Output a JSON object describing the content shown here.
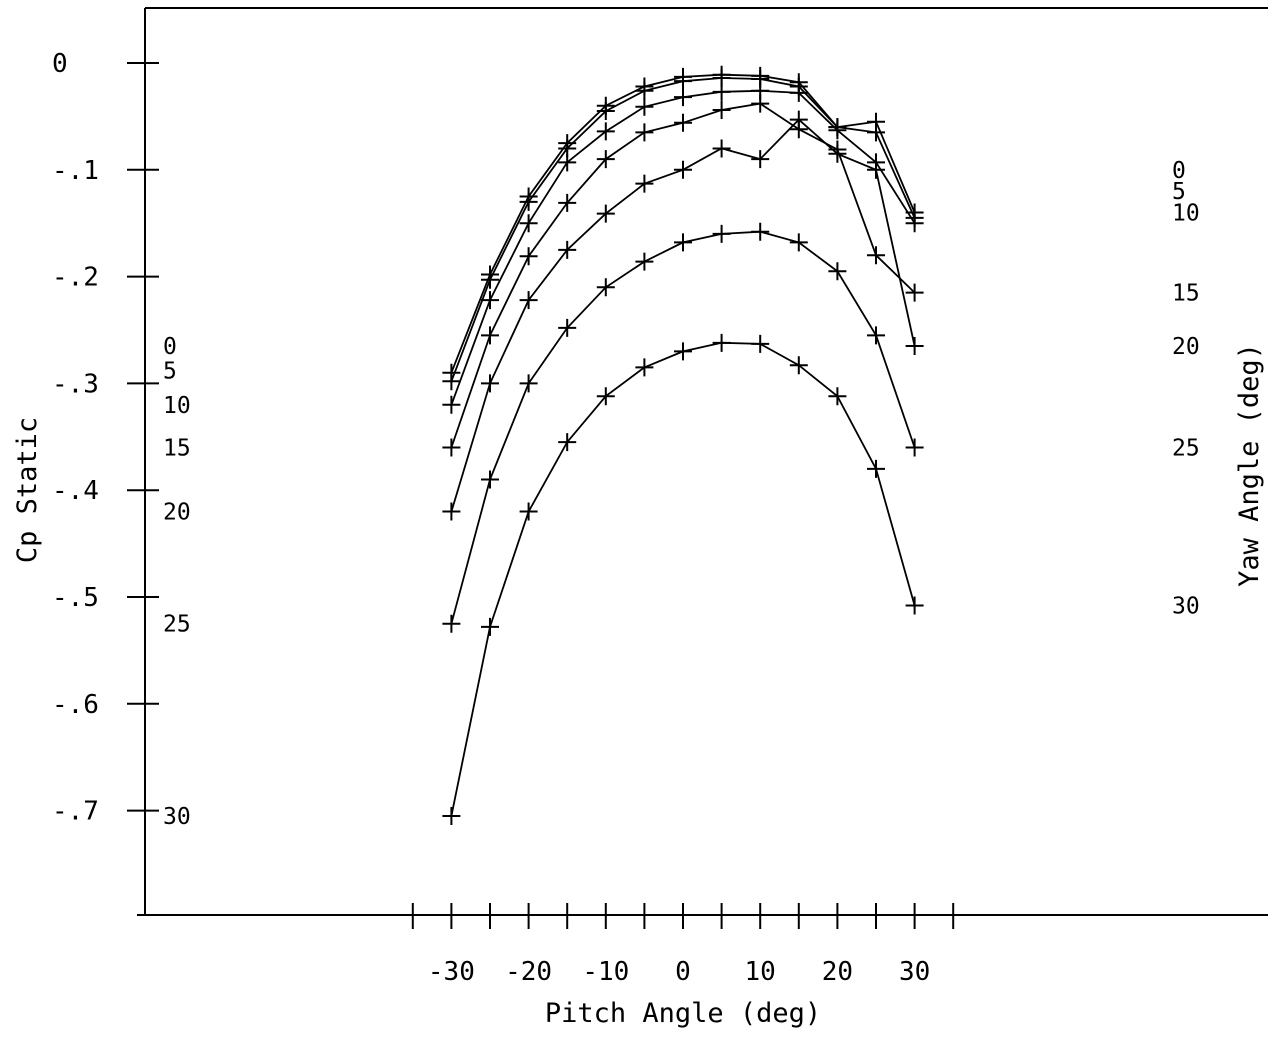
{
  "chart_data": {
    "type": "line",
    "title": "",
    "xlabel": "Pitch Angle (deg)",
    "ylabel": "Cp Static",
    "right_label": "Yaw Angle (deg)",
    "xlim": [
      -35,
      35
    ],
    "ylim": [
      -0.8,
      0.05
    ],
    "x_ticks": [
      -30,
      -20,
      -10,
      0,
      10,
      20,
      30
    ],
    "x_tick_labels": [
      "-30",
      "-20",
      "-10",
      "0",
      "10",
      "20",
      "30"
    ],
    "y_ticks": [
      0,
      -0.1,
      -0.2,
      -0.3,
      -0.4,
      -0.5,
      -0.6,
      -0.7
    ],
    "y_tick_labels": [
      "0",
      "-.1",
      "-.2",
      "-.3",
      "-.4",
      "-.5",
      "-.6",
      "-.7"
    ],
    "grid": false,
    "legend": "inline labels at left and right ends of each curve",
    "x": [
      -30,
      -25,
      -20,
      -15,
      -10,
      -5,
      0,
      5,
      10,
      15,
      20,
      25,
      30
    ],
    "series": [
      {
        "name": "0",
        "values": [
          -0.29,
          -0.198,
          -0.125,
          -0.075,
          -0.04,
          -0.022,
          -0.013,
          -0.011,
          -0.012,
          -0.018,
          -0.06,
          -0.055,
          -0.14
        ]
      },
      {
        "name": "5",
        "values": [
          -0.298,
          -0.203,
          -0.13,
          -0.08,
          -0.045,
          -0.026,
          -0.017,
          -0.014,
          -0.015,
          -0.022,
          -0.06,
          -0.065,
          -0.145
        ]
      },
      {
        "name": "10",
        "values": [
          -0.32,
          -0.222,
          -0.15,
          -0.093,
          -0.064,
          -0.041,
          -0.032,
          -0.027,
          -0.026,
          -0.028,
          -0.063,
          -0.093,
          -0.15
        ]
      },
      {
        "name": "15",
        "values": [
          -0.36,
          -0.255,
          -0.181,
          -0.131,
          -0.09,
          -0.065,
          -0.056,
          -0.044,
          -0.038,
          -0.062,
          -0.081,
          -0.18,
          -0.215
        ]
      },
      {
        "name": "20",
        "values": [
          -0.42,
          -0.3,
          -0.222,
          -0.175,
          -0.141,
          -0.113,
          -0.1,
          -0.08,
          -0.09,
          -0.053,
          -0.085,
          -0.1,
          -0.265
        ]
      },
      {
        "name": "25",
        "values": [
          -0.525,
          -0.39,
          -0.3,
          -0.248,
          -0.21,
          -0.186,
          -0.168,
          -0.16,
          -0.158,
          -0.168,
          -0.195,
          -0.255,
          -0.36
        ]
      },
      {
        "name": "30",
        "values": [
          -0.705,
          -0.528,
          -0.42,
          -0.355,
          -0.312,
          -0.285,
          -0.27,
          -0.262,
          -0.263,
          -0.283,
          -0.312,
          -0.38,
          -0.508
        ]
      }
    ],
    "left_labels": [
      {
        "text": "0",
        "y": -0.265
      },
      {
        "text": "5",
        "y": -0.288
      },
      {
        "text": "10",
        "y": -0.32
      },
      {
        "text": "15",
        "y": -0.36
      },
      {
        "text": "20",
        "y": -0.42
      },
      {
        "text": "25",
        "y": -0.525
      },
      {
        "text": "30",
        "y": -0.705
      }
    ],
    "right_labels": [
      {
        "text": "0",
        "y": -0.1
      },
      {
        "text": "5",
        "y": -0.12
      },
      {
        "text": "10",
        "y": -0.14
      },
      {
        "text": "15",
        "y": -0.215
      },
      {
        "text": "20",
        "y": -0.265
      },
      {
        "text": "25",
        "y": -0.36
      },
      {
        "text": "30",
        "y": -0.508
      }
    ]
  }
}
